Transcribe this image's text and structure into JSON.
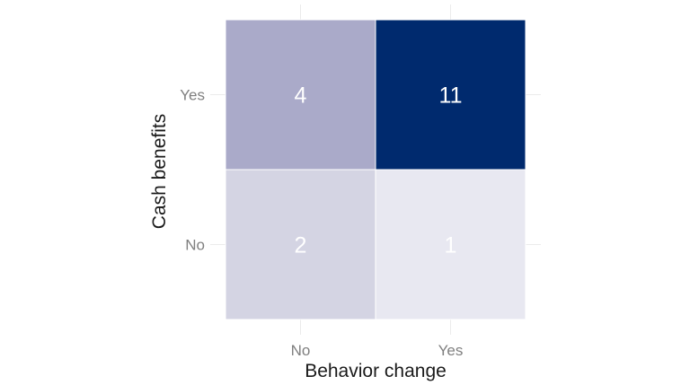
{
  "chart_data": {
    "type": "heatmap",
    "xlabel": "Behavior change",
    "ylabel": "Cash benefits",
    "x_categories": [
      "No",
      "Yes"
    ],
    "y_categories": [
      "No",
      "Yes"
    ],
    "cells": [
      {
        "x": "No",
        "y": "Yes",
        "value": 4,
        "color": "#aaaac9"
      },
      {
        "x": "Yes",
        "y": "Yes",
        "value": 11,
        "color": "#002a6e"
      },
      {
        "x": "No",
        "y": "No",
        "value": 2,
        "color": "#d4d4e3"
      },
      {
        "x": "Yes",
        "y": "No",
        "value": 1,
        "color": "#e8e8f1"
      }
    ],
    "grid": true,
    "legend": "none"
  }
}
